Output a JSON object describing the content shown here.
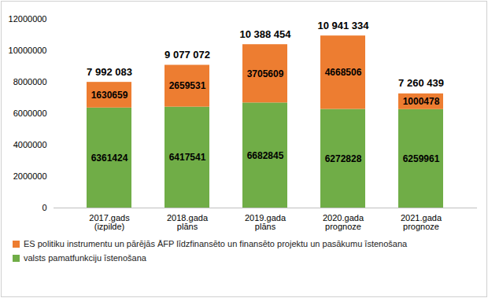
{
  "chart_data": {
    "type": "bar",
    "stacked": true,
    "data_labels": true,
    "grid": false,
    "legend": "bottom",
    "categories": [
      "2017.gads (izpilde)",
      "2018.gada plāns",
      "2019.gada plāns",
      "2020.gada prognoze",
      "2021.gada prognoze"
    ],
    "series": [
      {
        "name": "valsts pamatfunkciju īstenošana",
        "color": "#70ad47",
        "values": [
          6361424,
          6417541,
          6682845,
          6272828,
          6259961
        ]
      },
      {
        "name": "ES politiku instrumentu un pārējās ĀFP līdzfinansēto un finansēto projektu un pasākumu īstenošana",
        "color": "#ed7d31",
        "values": [
          1630659,
          2659531,
          3705609,
          4668506,
          1000478
        ]
      }
    ],
    "totals": {
      "values": [
        7992083,
        9077072,
        10388454,
        10941334,
        7260439
      ],
      "value_labels": [
        "7 992 083",
        "9 077 072",
        "10 388 454",
        "10 941 334",
        "7 260 439"
      ]
    },
    "ylim": [
      0,
      12000000
    ],
    "yticks": [
      0,
      2000000,
      4000000,
      6000000,
      8000000,
      10000000,
      12000000
    ]
  }
}
